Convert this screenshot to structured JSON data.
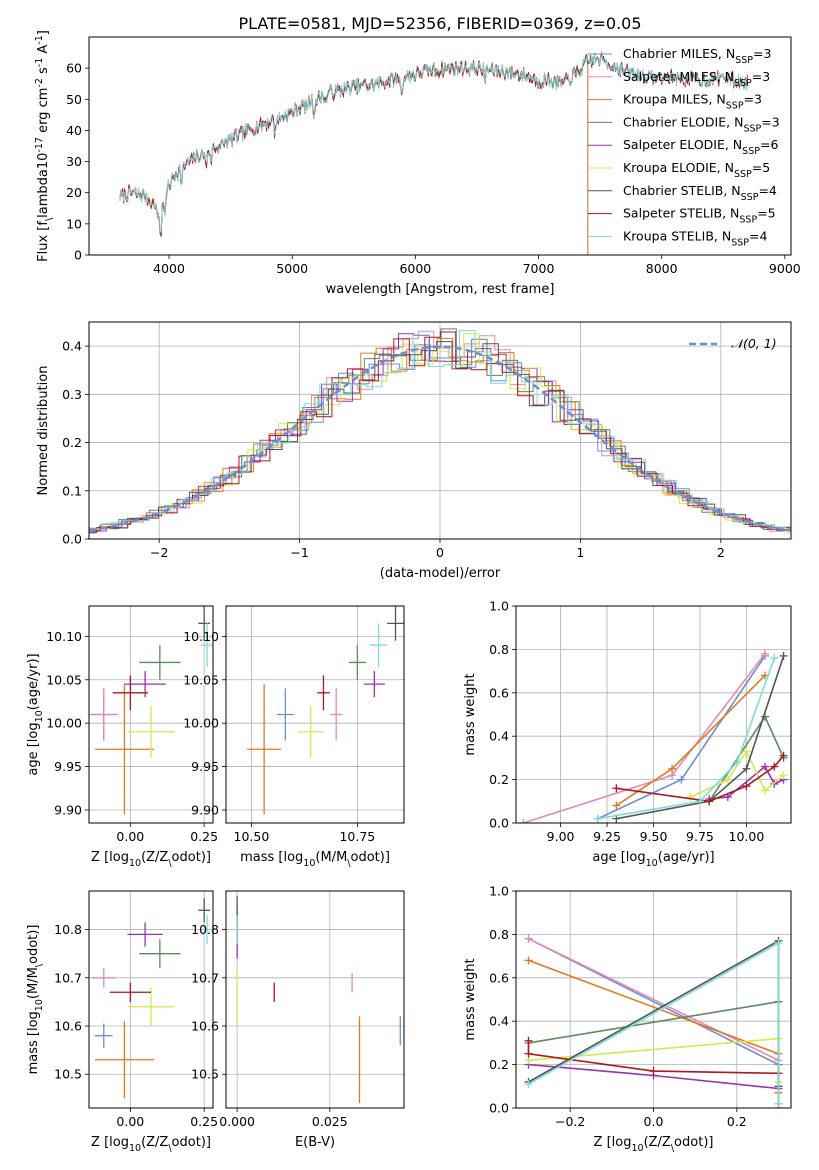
{
  "figure": {
    "title": "PLATE=0581, MJD=52356, FIBERID=0369, z=0.05"
  },
  "models": [
    {
      "name": "Chabrier MILES",
      "nssp": "3",
      "color": "#6a8fd8"
    },
    {
      "name": "Salpeter MILES",
      "nssp": "3",
      "color": "#e38ab4"
    },
    {
      "name": "Kroupa MILES",
      "nssp": "3",
      "color": "#e07a1e"
    },
    {
      "name": "Chabrier ELODIE",
      "nssp": "3",
      "color": "#5d8a5d"
    },
    {
      "name": "Salpeter ELODIE",
      "nssp": "6",
      "color": "#9a33b0"
    },
    {
      "name": "Kroupa ELODIE",
      "nssp": "5",
      "color": "#d6e84a"
    },
    {
      "name": "Chabrier STELIB",
      "nssp": "4",
      "color": "#555555"
    },
    {
      "name": "Salpeter STELIB",
      "nssp": "5",
      "color": "#b0161e"
    },
    {
      "name": "Kroupa STELIB",
      "nssp": "4",
      "color": "#7fdada"
    }
  ],
  "chart_data": [
    {
      "id": "spectrum",
      "type": "line",
      "xlabel": "wavelength [Angstrom, rest frame]",
      "ylabel": "Flux [f$_\\lambda$10$^{-17}$ erg cm$^{-2}$ s$^{-1}$ A$^{-1}$]",
      "xlim": [
        3350,
        9050
      ],
      "ylim": [
        0,
        70
      ],
      "xticks": [
        4000,
        5000,
        6000,
        7000,
        8000,
        9000
      ],
      "yticks": [
        0,
        10,
        20,
        30,
        40,
        50,
        60
      ],
      "continuum_anchors": {
        "x": [
          3600,
          3700,
          3800,
          3880,
          3920,
          3960,
          4050,
          4200,
          4350,
          4500,
          4700,
          4900,
          5100,
          5300,
          5500,
          5700,
          5900,
          6100,
          6300,
          6500,
          6700,
          6850,
          7000,
          7100,
          7200,
          7300,
          7400,
          7500,
          7700,
          7900,
          8100,
          8300,
          8500,
          8700
        ],
        "y": [
          19,
          20,
          19,
          16,
          12,
          19,
          26,
          31,
          34,
          37,
          41,
          44,
          48,
          52,
          54,
          55,
          57,
          59,
          60,
          60,
          59,
          58,
          56,
          56,
          55,
          58,
          62,
          63,
          59,
          57,
          57,
          56,
          57,
          55
        ]
      },
      "spectrum_ranges": {
        "Chabrier MILES": [
          3600,
          7400
        ],
        "Salpeter MILES": [
          3600,
          7400
        ],
        "Kroupa MILES": [
          3600,
          7400
        ],
        "Chabrier ELODIE": [
          3900,
          6800
        ],
        "Salpeter ELODIE": [
          3900,
          6800
        ],
        "Kroupa ELODIE": [
          3900,
          6800
        ],
        "Chabrier STELIB": [
          3600,
          8700
        ],
        "Salpeter STELIB": [
          3600,
          8700
        ],
        "Kroupa STELIB": [
          3600,
          8700
        ]
      }
    },
    {
      "id": "residuals",
      "type": "line",
      "xlabel": "(data-model)/error",
      "ylabel": "Normed distribution",
      "xlim": [
        -2.5,
        2.5
      ],
      "ylim": [
        0,
        0.45
      ],
      "xticks": [
        -2,
        -1,
        0,
        1,
        2
      ],
      "yticks": [
        0.0,
        0.1,
        0.2,
        0.3,
        0.4
      ],
      "legend": "$\\mathcal{N}(0,1)$",
      "legend_loc": "top-right"
    },
    {
      "id": "age_vs_z",
      "type": "scatter",
      "xlabel": "Z [log$_{10}$($Z/Z_\\odot$)]",
      "ylabel": "age  [log$_{10}$($age/yr$)]",
      "xlim": [
        -0.14,
        0.28
      ],
      "ylim": [
        9.885,
        10.135
      ],
      "xticks": [
        0.0,
        0.25
      ],
      "yticks": [
        9.9,
        9.95,
        10.0,
        10.05,
        10.1
      ],
      "points": [
        {
          "model": "Chabrier MILES",
          "x": -0.09,
          "y": 10.01,
          "xerr": 0.04,
          "yerr": 0.03
        },
        {
          "model": "Salpeter MILES",
          "x": -0.09,
          "y": 10.01,
          "xerr": 0.05,
          "yerr": 0.03
        },
        {
          "model": "Kroupa MILES",
          "x": -0.02,
          "y": 9.97,
          "xerr": 0.1,
          "yerr": 0.075
        },
        {
          "model": "Chabrier ELODIE",
          "x": 0.1,
          "y": 10.07,
          "xerr": 0.07,
          "yerr": 0.02
        },
        {
          "model": "Salpeter ELODIE",
          "x": 0.05,
          "y": 10.045,
          "xerr": 0.07,
          "yerr": 0.015
        },
        {
          "model": "Kroupa ELODIE",
          "x": 0.07,
          "y": 9.99,
          "xerr": 0.08,
          "yerr": 0.03
        },
        {
          "model": "Chabrier STELIB",
          "x": 0.25,
          "y": 10.115,
          "xerr": 0.02,
          "yerr": 0.02
        },
        {
          "model": "Salpeter STELIB",
          "x": 0.0,
          "y": 10.035,
          "xerr": 0.06,
          "yerr": 0.02
        },
        {
          "model": "Kroupa STELIB",
          "x": 0.26,
          "y": 10.09,
          "xerr": 0.02,
          "yerr": 0.025
        }
      ]
    },
    {
      "id": "age_vs_mass",
      "type": "scatter",
      "xlabel": "mass [log$_{10}$($M/M_\\odot$)]",
      "ylabel": "",
      "xlim": [
        10.44,
        10.86
      ],
      "ylim": [
        9.885,
        10.135
      ],
      "xticks": [
        10.5,
        10.75
      ],
      "yticks": [
        9.9,
        9.95,
        10.0,
        10.05,
        10.1
      ],
      "points": [
        {
          "model": "Chabrier MILES",
          "x": 10.58,
          "y": 10.01,
          "xerr": 0.02,
          "yerr": 0.03
        },
        {
          "model": "Salpeter MILES",
          "x": 10.7,
          "y": 10.01,
          "xerr": 0.015,
          "yerr": 0.03
        },
        {
          "model": "Kroupa MILES",
          "x": 10.53,
          "y": 9.97,
          "xerr": 0.04,
          "yerr": 0.075
        },
        {
          "model": "Chabrier ELODIE",
          "x": 10.75,
          "y": 10.07,
          "xerr": 0.02,
          "yerr": 0.02
        },
        {
          "model": "Salpeter ELODIE",
          "x": 10.79,
          "y": 10.045,
          "xerr": 0.025,
          "yerr": 0.015
        },
        {
          "model": "Kroupa ELODIE",
          "x": 10.64,
          "y": 9.99,
          "xerr": 0.03,
          "yerr": 0.03
        },
        {
          "model": "Chabrier STELIB",
          "x": 10.84,
          "y": 10.115,
          "xerr": 0.02,
          "yerr": 0.02
        },
        {
          "model": "Salpeter STELIB",
          "x": 10.67,
          "y": 10.035,
          "xerr": 0.015,
          "yerr": 0.02
        },
        {
          "model": "Kroupa STELIB",
          "x": 10.8,
          "y": 10.09,
          "xerr": 0.02,
          "yerr": 0.025
        }
      ]
    },
    {
      "id": "weight_vs_age",
      "type": "line",
      "xlabel": "age  [log$_{10}$($age/yr$)]",
      "ylabel": "mass weight",
      "xlim": [
        8.76,
        10.24
      ],
      "ylim": [
        0,
        1
      ],
      "xticks": [
        9.0,
        9.25,
        9.5,
        9.75,
        10.0
      ],
      "yticks": [
        0.0,
        0.2,
        0.4,
        0.6,
        0.8,
        1.0
      ],
      "series": [
        {
          "model": "Chabrier MILES",
          "x": [
            9.2,
            9.65,
            10.1
          ],
          "y": [
            0.02,
            0.2,
            0.77
          ]
        },
        {
          "model": "Salpeter MILES",
          "x": [
            8.8,
            9.6,
            10.1
          ],
          "y": [
            0.0,
            0.22,
            0.78
          ]
        },
        {
          "model": "Kroupa MILES",
          "x": [
            9.3,
            9.6,
            10.1
          ],
          "y": [
            0.08,
            0.25,
            0.68
          ]
        },
        {
          "model": "Chabrier ELODIE",
          "x": [
            9.8,
            10.1,
            10.2
          ],
          "y": [
            0.1,
            0.49,
            0.3
          ]
        },
        {
          "model": "Salpeter ELODIE",
          "x": [
            9.8,
            9.9,
            10.1,
            10.15,
            10.2
          ],
          "y": [
            0.11,
            0.12,
            0.26,
            0.18,
            0.2
          ]
        },
        {
          "model": "Kroupa ELODIE",
          "x": [
            9.7,
            9.9,
            10.0,
            10.1,
            10.2
          ],
          "y": [
            0.12,
            0.2,
            0.33,
            0.15,
            0.22
          ]
        },
        {
          "model": "Chabrier STELIB",
          "x": [
            9.3,
            9.8,
            10.0,
            10.2
          ],
          "y": [
            0.02,
            0.1,
            0.25,
            0.77
          ]
        },
        {
          "model": "Salpeter STELIB",
          "x": [
            9.3,
            9.8,
            10.0,
            10.15,
            10.2
          ],
          "y": [
            0.16,
            0.1,
            0.17,
            0.26,
            0.31
          ]
        },
        {
          "model": "Kroupa STELIB",
          "x": [
            9.2,
            9.75,
            9.95,
            10.15
          ],
          "y": [
            0.02,
            0.1,
            0.28,
            0.76
          ]
        }
      ]
    },
    {
      "id": "mass_vs_z",
      "type": "scatter",
      "xlabel": "Z [log$_{10}$($Z/Z_\\odot$)]",
      "ylabel": "mass [log$_{10}$($M/M_\\odot$)]",
      "xlim": [
        -0.14,
        0.28
      ],
      "ylim": [
        10.43,
        10.88
      ],
      "xticks": [
        0.0,
        0.25
      ],
      "yticks": [
        10.5,
        10.6,
        10.7,
        10.8
      ],
      "points": [
        {
          "model": "Chabrier MILES",
          "x": -0.09,
          "y": 10.58,
          "xerr": 0.03,
          "yerr": 0.025
        },
        {
          "model": "Salpeter MILES",
          "x": -0.09,
          "y": 10.7,
          "xerr": 0.04,
          "yerr": 0.02
        },
        {
          "model": "Kroupa MILES",
          "x": -0.02,
          "y": 10.53,
          "xerr": 0.1,
          "yerr": 0.08
        },
        {
          "model": "Chabrier ELODIE",
          "x": 0.1,
          "y": 10.75,
          "xerr": 0.07,
          "yerr": 0.03
        },
        {
          "model": "Salpeter ELODIE",
          "x": 0.05,
          "y": 10.79,
          "xerr": 0.06,
          "yerr": 0.025
        },
        {
          "model": "Kroupa ELODIE",
          "x": 0.07,
          "y": 10.64,
          "xerr": 0.08,
          "yerr": 0.04
        },
        {
          "model": "Chabrier STELIB",
          "x": 0.25,
          "y": 10.84,
          "xerr": 0.02,
          "yerr": 0.025
        },
        {
          "model": "Salpeter STELIB",
          "x": 0.0,
          "y": 10.67,
          "xerr": 0.07,
          "yerr": 0.02
        },
        {
          "model": "Kroupa STELIB",
          "x": 0.26,
          "y": 10.8,
          "xerr": 0.02,
          "yerr": 0.03
        }
      ]
    },
    {
      "id": "mass_vs_ebv",
      "type": "scatter",
      "xlabel": "E(B-V)",
      "ylabel": "",
      "xlim": [
        -0.003,
        0.045
      ],
      "ylim": [
        10.43,
        10.88
      ],
      "xticks": [
        0.0,
        0.025
      ],
      "yticks": [
        10.5,
        10.6,
        10.7,
        10.8
      ],
      "points": [
        {
          "model": "Chabrier MILES",
          "x": 0.044,
          "y": 10.59,
          "yerr": 0.03
        },
        {
          "model": "Salpeter MILES",
          "x": 0.031,
          "y": 10.69,
          "yerr": 0.02
        },
        {
          "model": "Kroupa MILES",
          "x": 0.033,
          "y": 10.53,
          "yerr": 0.09
        },
        {
          "model": "Chabrier ELODIE",
          "x": 0.0,
          "y": 10.8,
          "yerr": 0.03
        },
        {
          "model": "Salpeter ELODIE",
          "x": 0.0,
          "y": 10.79,
          "yerr": 0.05
        },
        {
          "model": "Kroupa ELODIE",
          "x": 0.0,
          "y": 10.66,
          "yerr": 0.06
        },
        {
          "model": "Chabrier STELIB",
          "x": 0.0,
          "y": 10.84,
          "yerr": 0.03
        },
        {
          "model": "Salpeter STELIB",
          "x": 0.01,
          "y": 10.67,
          "yerr": 0.02
        },
        {
          "model": "Kroupa STELIB",
          "x": 0.0,
          "y": 10.8,
          "yerr": 0.03
        }
      ]
    },
    {
      "id": "weight_vs_z",
      "type": "line",
      "xlabel": "Z [log$_{10}$($Z/Z_\\odot$)]",
      "ylabel": "mass weight",
      "xlim": [
        -0.33,
        0.33
      ],
      "ylim": [
        0,
        1
      ],
      "xticks": [
        -0.2,
        0.0,
        0.2
      ],
      "yticks": [
        0.0,
        0.2,
        0.4,
        0.6,
        0.8,
        1.0
      ],
      "series": [
        {
          "model": "Chabrier MILES",
          "x": [
            -0.3,
            0.3,
            0.3
          ],
          "y": [
            0.78,
            0.2,
            0.02
          ]
        },
        {
          "model": "Salpeter MILES",
          "x": [
            -0.3,
            0.3,
            0.3
          ],
          "y": [
            0.78,
            0.22,
            0.0
          ]
        },
        {
          "model": "Kroupa MILES",
          "x": [
            -0.3,
            0.3,
            0.3
          ],
          "y": [
            0.68,
            0.25,
            0.07
          ]
        },
        {
          "model": "Chabrier ELODIE",
          "x": [
            -0.3,
            0.3
          ],
          "y": [
            0.3,
            0.49
          ]
        },
        {
          "model": "Salpeter ELODIE",
          "x": [
            -0.3,
            0.0,
            0.3
          ],
          "y": [
            0.2,
            0.15,
            0.09
          ]
        },
        {
          "model": "Kroupa ELODIE",
          "x": [
            -0.3,
            0.3,
            0.3
          ],
          "y": [
            0.22,
            0.32,
            0.12
          ]
        },
        {
          "model": "Chabrier STELIB",
          "x": [
            -0.3,
            0.3,
            0.3
          ],
          "y": [
            0.12,
            0.77,
            0.1
          ]
        },
        {
          "model": "Salpeter STELIB",
          "x": [
            -0.3,
            -0.3,
            0.0,
            0.3
          ],
          "y": [
            0.31,
            0.25,
            0.17,
            0.16
          ]
        },
        {
          "model": "Kroupa STELIB",
          "x": [
            -0.3,
            0.3,
            0.3
          ],
          "y": [
            0.11,
            0.76,
            0.02
          ]
        }
      ]
    }
  ]
}
